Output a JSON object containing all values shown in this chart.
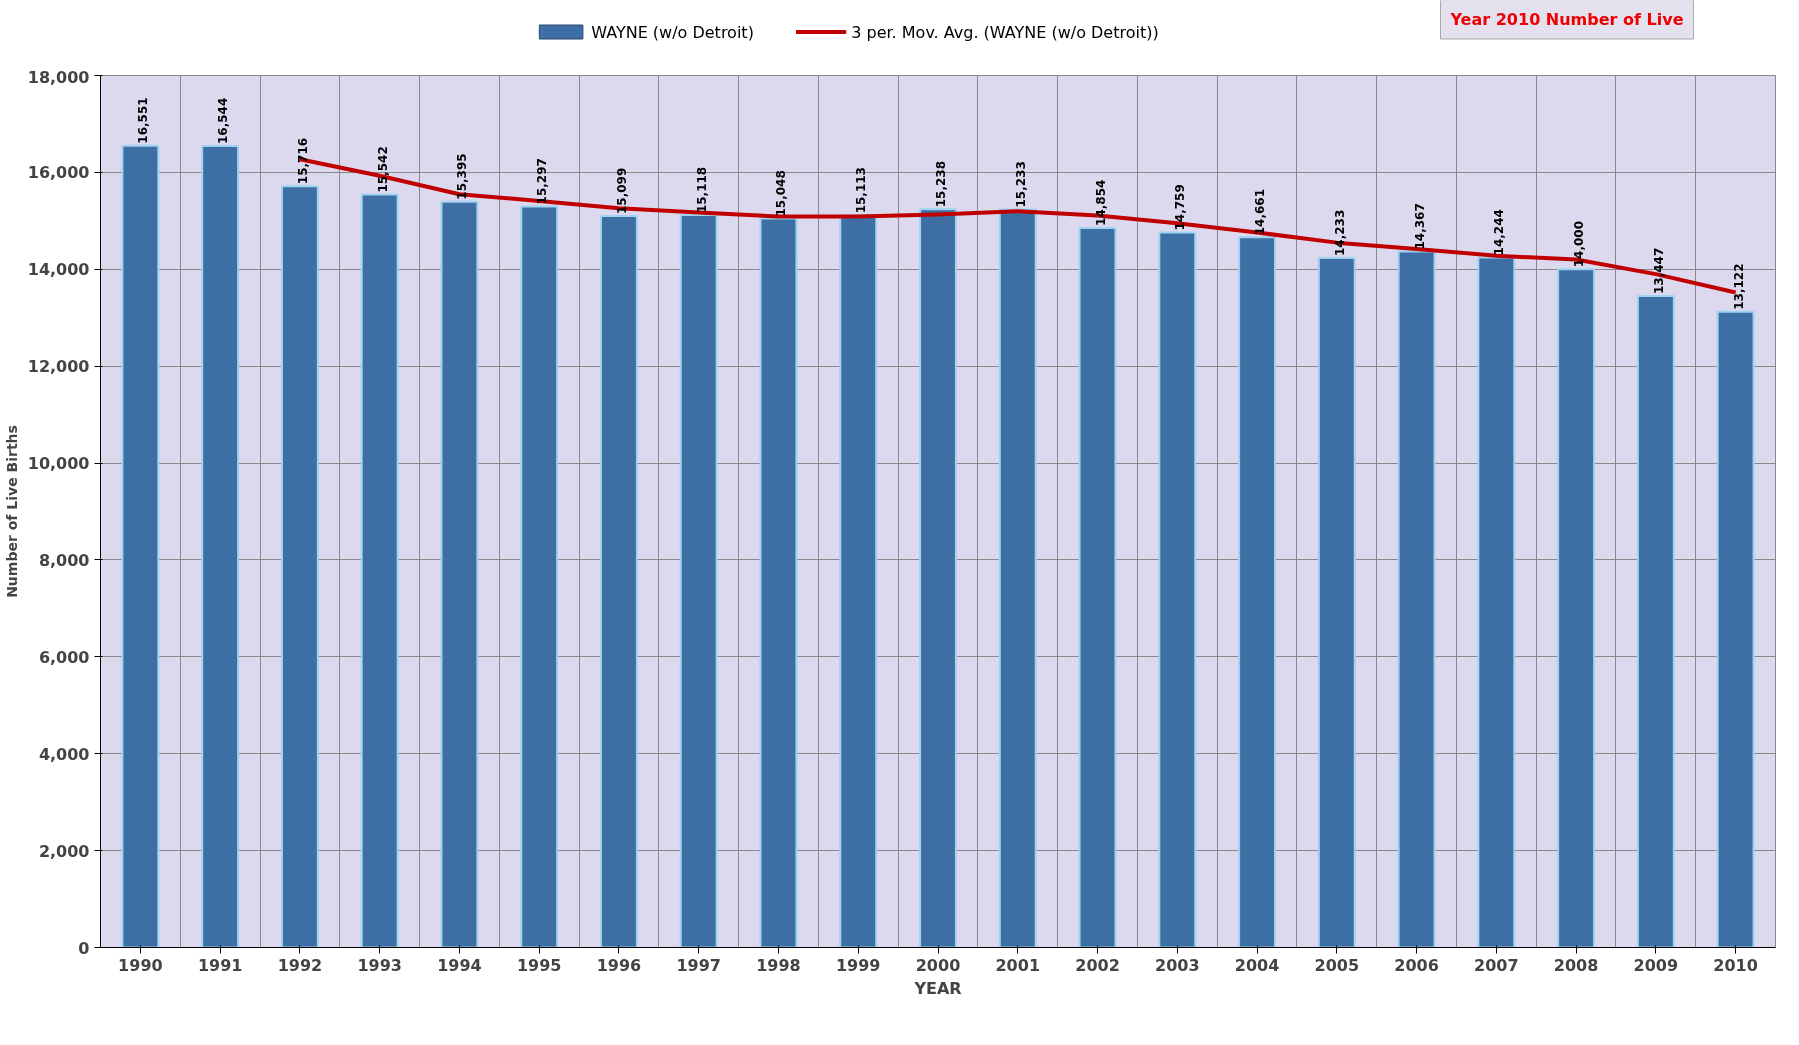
{
  "chart_data": {
    "type": "bar",
    "xlabel": "YEAR",
    "ylabel": "Number of Live Births",
    "annotations": [
      "Year 2010 Number of Live"
    ],
    "categories": [
      "1990",
      "1991",
      "1992",
      "1993",
      "1994",
      "1995",
      "1996",
      "1997",
      "1998",
      "1999",
      "2000",
      "2001",
      "2002",
      "2003",
      "2004",
      "2005",
      "2006",
      "2007",
      "2008",
      "2009",
      "2010"
    ],
    "series": [
      {
        "name": "WAYNE (w/o Detroit)",
        "color": "#3d6fa5",
        "values": [
          16551,
          16544,
          15716,
          15542,
          15395,
          15297,
          15099,
          15118,
          15048,
          15113,
          15238,
          15233,
          14854,
          14759,
          14661,
          14233,
          14367,
          14244,
          14000,
          13447,
          13122
        ],
        "value_labels": [
          "16,551",
          "16,544",
          "15,716",
          "15,542",
          "15,395",
          "15,297",
          "15,099",
          "15,118",
          "15,048",
          "15,113",
          "15,238",
          "15,233",
          "14,854",
          "14,759",
          "14,661",
          "14,233",
          "14,367",
          "14,244",
          "14,000",
          "13,447",
          "13,122"
        ]
      },
      {
        "name": "3 per. Mov. Avg. (WAYNE (w/o Detroit))",
        "color": "#c00000",
        "type": "line",
        "values": [
          null,
          null,
          16270,
          15930,
          15550,
          15410,
          15260,
          15170,
          15090,
          15090,
          15130,
          15200,
          15110,
          14950,
          14760,
          14550,
          14420,
          14280,
          14200,
          13900,
          13520
        ]
      }
    ],
    "ylim": [
      0,
      18000
    ],
    "yticks": [
      {
        "value": 0,
        "label": "0"
      },
      {
        "value": 2000,
        "label": "2,000"
      },
      {
        "value": 4000,
        "label": "4,000"
      },
      {
        "value": 6000,
        "label": "6,000"
      },
      {
        "value": 8000,
        "label": "8,000"
      },
      {
        "value": 10000,
        "label": "10,000"
      },
      {
        "value": 12000,
        "label": "12,000"
      },
      {
        "value": 14000,
        "label": "14,000"
      },
      {
        "value": 16000,
        "label": "16,000"
      },
      {
        "value": 18000,
        "label": "18,000"
      }
    ],
    "grid": true,
    "legend": "top"
  }
}
